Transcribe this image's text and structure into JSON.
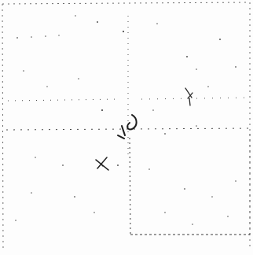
{
  "image": {
    "description": "",
    "stroke_color": "#2a2a2a",
    "faint_color": "#9a9a9a",
    "background_color": "#fdfdfd"
  },
  "icons": {
    "center_mark": "crosshair-glyph-icon",
    "lower_mark": "scribble-x-icon",
    "right_mark": "small-cross-icon"
  }
}
